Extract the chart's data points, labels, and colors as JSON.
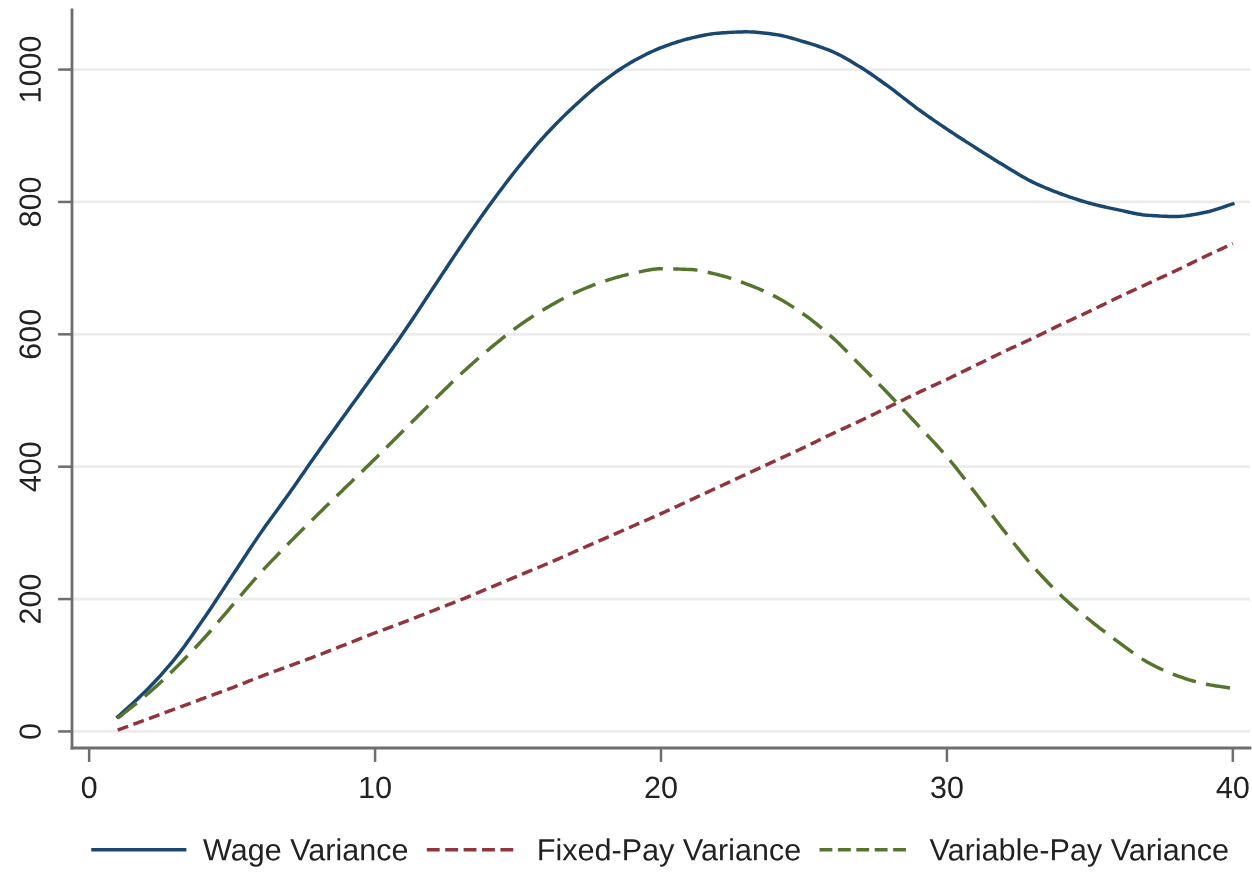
{
  "chart_data": {
    "type": "line",
    "x": [
      1,
      2,
      3,
      4,
      5,
      6,
      7,
      8,
      9,
      10,
      11,
      12,
      13,
      14,
      15,
      16,
      17,
      18,
      19,
      20,
      21,
      22,
      23,
      24,
      25,
      26,
      27,
      28,
      29,
      30,
      31,
      32,
      33,
      34,
      35,
      36,
      37,
      38,
      39,
      40
    ],
    "series": [
      {
        "name": "Wage Variance",
        "color": "#1a476f",
        "line_style": "solid",
        "values": [
          22,
          62,
          110,
          170,
          235,
          300,
          360,
          422,
          482,
          542,
          603,
          668,
          733,
          795,
          852,
          903,
          946,
          983,
          1012,
          1033,
          1047,
          1055,
          1057,
          1053,
          1042,
          1027,
          1003,
          973,
          940,
          910,
          882,
          855,
          830,
          812,
          798,
          788,
          780,
          778,
          784,
          797
        ]
      },
      {
        "name": "Fixed-Pay Variance",
        "color": "#90353b",
        "line_style": "dashed",
        "values": [
          2,
          18,
          34,
          50,
          66,
          83,
          99,
          115,
          132,
          149,
          165,
          182,
          199,
          217,
          235,
          253,
          272,
          291,
          310,
          329,
          349,
          369,
          389,
          409,
          429,
          450,
          470,
          491,
          512,
          532,
          553,
          574,
          594,
          615,
          635,
          656,
          676,
          696,
          717,
          737
        ]
      },
      {
        "name": "Variable-Pay Variance",
        "color": "#55752f",
        "line_style": "dashed",
        "values": [
          20,
          55,
          95,
          140,
          190,
          240,
          285,
          328,
          370,
          412,
          455,
          498,
          540,
          578,
          612,
          640,
          663,
          680,
          692,
          699,
          698,
          690,
          676,
          657,
          630,
          595,
          552,
          508,
          462,
          415,
          360,
          303,
          250,
          205,
          168,
          135,
          105,
          85,
          72,
          65
        ]
      }
    ],
    "xlim": [
      -0.6,
      40.6
    ],
    "xticks": [
      0,
      10,
      20,
      30,
      40
    ],
    "ylim": [
      -25,
      1090
    ],
    "yticks": [
      0,
      200,
      400,
      600,
      800,
      1000
    ],
    "grid": "y",
    "legend": "bottom"
  }
}
